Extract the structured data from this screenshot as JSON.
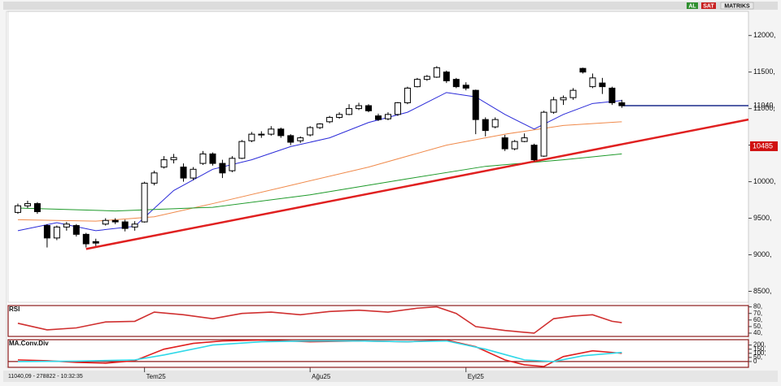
{
  "toolbar": {
    "buttons": [
      "AL",
      "SAT",
      "MATRIKS"
    ]
  },
  "status": "11040,09 - 278822 - 10:32:35",
  "chart_data": [
    {
      "type": "candlestick",
      "candles": [
        [
          9580,
          9700,
          9560,
          9670
        ],
        [
          9670,
          9740,
          9640,
          9700
        ],
        [
          9700,
          9720,
          9560,
          9590
        ],
        [
          9400,
          9420,
          9100,
          9230
        ],
        [
          9230,
          9400,
          9200,
          9380
        ],
        [
          9380,
          9450,
          9330,
          9420
        ],
        [
          9400,
          9420,
          9250,
          9280
        ],
        [
          9280,
          9300,
          9100,
          9150
        ],
        [
          9180,
          9220,
          9120,
          9160
        ],
        [
          9420,
          9500,
          9400,
          9470
        ],
        [
          9470,
          9500,
          9420,
          9450
        ],
        [
          9450,
          9480,
          9320,
          9360
        ],
        [
          9380,
          9460,
          9330,
          9420
        ],
        [
          9450,
          10000,
          9440,
          9980
        ],
        [
          9980,
          10150,
          9950,
          10120
        ],
        [
          10200,
          10350,
          10180,
          10300
        ],
        [
          10300,
          10380,
          10250,
          10330
        ],
        [
          10200,
          10250,
          10000,
          10050
        ],
        [
          10050,
          10200,
          10020,
          10170
        ],
        [
          10250,
          10420,
          10230,
          10380
        ],
        [
          10380,
          10400,
          10220,
          10250
        ],
        [
          10250,
          10300,
          10050,
          10120
        ],
        [
          10150,
          10350,
          10130,
          10320
        ],
        [
          10320,
          10570,
          10310,
          10550
        ],
        [
          10560,
          10680,
          10540,
          10650
        ],
        [
          10640,
          10690,
          10600,
          10650
        ],
        [
          10650,
          10760,
          10630,
          10720
        ],
        [
          10720,
          10740,
          10600,
          10630
        ],
        [
          10630,
          10650,
          10500,
          10540
        ],
        [
          10560,
          10620,
          10530,
          10600
        ],
        [
          10640,
          10760,
          10620,
          10740
        ],
        [
          10740,
          10800,
          10720,
          10790
        ],
        [
          10820,
          10900,
          10800,
          10880
        ],
        [
          10880,
          10950,
          10860,
          10920
        ],
        [
          10920,
          11060,
          10910,
          11000
        ],
        [
          11000,
          11080,
          10980,
          11040
        ],
        [
          11040,
          11060,
          10950,
          10970
        ],
        [
          10900,
          10930,
          10830,
          10850
        ],
        [
          10860,
          10950,
          10840,
          10920
        ],
        [
          10920,
          11090,
          10900,
          11080
        ],
        [
          11080,
          11300,
          11060,
          11280
        ],
        [
          11300,
          11420,
          11290,
          11400
        ],
        [
          11400,
          11460,
          11380,
          11440
        ],
        [
          11430,
          11580,
          11420,
          11560
        ],
        [
          11500,
          11520,
          11350,
          11380
        ],
        [
          11400,
          11420,
          11280,
          11300
        ],
        [
          11320,
          11360,
          11250,
          11280
        ],
        [
          11250,
          11260,
          10650,
          10850
        ],
        [
          10850,
          10880,
          10620,
          10700
        ],
        [
          10750,
          10880,
          10730,
          10850
        ],
        [
          10600,
          10640,
          10420,
          10450
        ],
        [
          10450,
          10570,
          10430,
          10550
        ],
        [
          10550,
          10660,
          10540,
          10600
        ],
        [
          10500,
          10520,
          10280,
          10300
        ],
        [
          10350,
          10970,
          10340,
          10950
        ],
        [
          10950,
          11160,
          10930,
          11120
        ],
        [
          11120,
          11180,
          11050,
          11150
        ],
        [
          11150,
          11280,
          11120,
          11250
        ],
        [
          11550,
          11560,
          11480,
          11500
        ],
        [
          11300,
          11480,
          11280,
          11420
        ],
        [
          11350,
          11420,
          11200,
          11300
        ],
        [
          11280,
          11300,
          11050,
          11080
        ],
        [
          11080,
          11120,
          11010,
          11040
        ]
      ],
      "xlim": [
        -1,
        75
      ],
      "xticks": [
        {
          "value": 13,
          "label": "Tem25"
        },
        {
          "value": 30,
          "label": "Ağu25"
        },
        {
          "value": 46,
          "label": "Eyl25"
        }
      ],
      "ylim": [
        8350,
        12330
      ],
      "yticks": [
        {
          "value": 8500,
          "label": "8500,"
        },
        {
          "value": 9000,
          "label": "9000,"
        },
        {
          "value": 9500,
          "label": "9500,"
        },
        {
          "value": 10000,
          "label": "10000,"
        },
        {
          "value": 10500,
          "label": "10500,"
        },
        {
          "value": 11000,
          "label": "11000,"
        },
        {
          "value": 11500,
          "label": "11500,"
        },
        {
          "value": 12000,
          "label": "12000,"
        }
      ],
      "lines": [
        {
          "color": "#2a2ad8",
          "x": [
            0,
            4,
            8,
            12,
            16,
            20,
            24,
            28,
            32,
            36,
            40,
            44,
            47,
            50,
            53,
            56,
            59,
            62
          ],
          "values": [
            9330,
            9440,
            9330,
            9390,
            9880,
            10170,
            10300,
            10480,
            10600,
            10810,
            10950,
            11220,
            11160,
            10920,
            10720,
            10920,
            11070,
            11110
          ]
        },
        {
          "color": "#f08a4b",
          "x": [
            0,
            8,
            14,
            20,
            28,
            36,
            44,
            50,
            56,
            62
          ],
          "values": [
            9480,
            9460,
            9520,
            9700,
            9950,
            10200,
            10500,
            10650,
            10770,
            10820
          ]
        },
        {
          "color": "#1e9a2a",
          "x": [
            0,
            10,
            20,
            30,
            40,
            48,
            56,
            62
          ],
          "values": [
            9640,
            9600,
            9650,
            9820,
            10040,
            10210,
            10300,
            10380
          ]
        }
      ],
      "trendline": {
        "color": "#e02020",
        "x": [
          7,
          75
        ],
        "values": [
          9080,
          10850
        ]
      },
      "last_price": {
        "value": 11040,
        "label": "11040,",
        "color": "#1a2a8c"
      },
      "marker": {
        "value": 10485,
        "label": "10485",
        "color": "#d01010"
      }
    },
    {
      "type": "line",
      "title": "RSI",
      "xlim": [
        -1,
        75
      ],
      "ylim": [
        35,
        82
      ],
      "yticks": [
        {
          "value": 80,
          "label": "80,"
        },
        {
          "value": 70,
          "label": "70,"
        },
        {
          "value": 60,
          "label": "60,"
        },
        {
          "value": 50,
          "label": "50,"
        },
        {
          "value": 40,
          "label": "40,"
        }
      ],
      "lines": [
        {
          "color": "#d03030",
          "x": [
            0,
            3,
            6,
            9,
            12,
            14,
            17,
            20,
            23,
            26,
            29,
            32,
            35,
            38,
            41,
            43,
            45,
            47,
            50,
            53,
            55,
            57,
            59,
            61,
            62
          ],
          "values": [
            55,
            45,
            48,
            57,
            58,
            72,
            68,
            62,
            70,
            72,
            68,
            73,
            75,
            72,
            78,
            80,
            70,
            50,
            44,
            40,
            62,
            66,
            68,
            58,
            56
          ]
        }
      ]
    },
    {
      "type": "line",
      "title": "MA.Conv.Div",
      "xlim": [
        -1,
        75
      ],
      "ylim": [
        -70,
        265
      ],
      "yticks": [
        {
          "value": 200,
          "label": "200,"
        },
        {
          "value": 150,
          "label": "150,"
        },
        {
          "value": 100,
          "label": "100,"
        },
        {
          "value": 50,
          "label": "50,"
        },
        0
      ],
      "lines": [
        {
          "color": "#e02020",
          "x": [
            0,
            3,
            6,
            9,
            12,
            15,
            18,
            21,
            25,
            30,
            35,
            40,
            44,
            47,
            50,
            52,
            54,
            56,
            59,
            62
          ],
          "values": [
            20,
            10,
            -10,
            -20,
            10,
            150,
            220,
            250,
            260,
            240,
            250,
            240,
            260,
            180,
            20,
            -40,
            -60,
            60,
            130,
            100
          ]
        },
        {
          "color": "#30d8e8",
          "x": [
            0,
            6,
            12,
            15,
            20,
            25,
            30,
            35,
            40,
            44,
            48,
            52,
            55,
            58,
            62
          ],
          "values": [
            0,
            5,
            20,
            80,
            200,
            240,
            250,
            250,
            240,
            250,
            150,
            20,
            0,
            70,
            110
          ]
        }
      ]
    }
  ]
}
